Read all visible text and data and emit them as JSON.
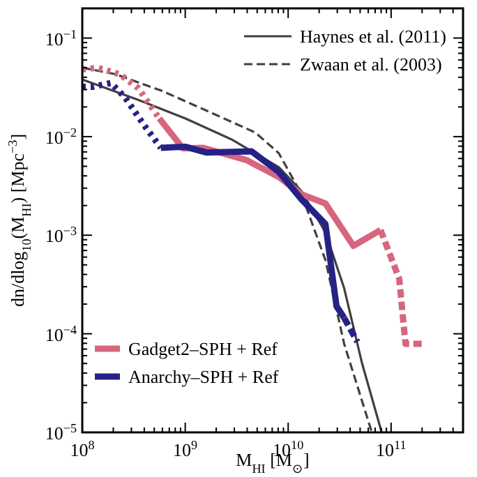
{
  "chart_data": {
    "type": "line",
    "xlabel": "M$_{HI}$ [M$_{⊙}$]",
    "ylabel": "dn/dlog$_{10}$(M$_{HI}$) [Mpc$^{−3}$]",
    "log": "xy",
    "legend": "top right",
    "grid": false,
    "marker": "none",
    "xlim": [
      100000000.0,
      500000000000.0
    ],
    "ylim": [
      1e-05,
      0.2
    ],
    "xticks": [
      {
        "value": 100000000.0,
        "label": "10$^{8}$"
      },
      {
        "value": 200000000.0,
        "label": null
      },
      {
        "value": 300000000.0,
        "label": null
      },
      {
        "value": 400000000.0,
        "label": null
      },
      {
        "value": 500000000.0,
        "label": null
      },
      {
        "value": 600000000.0,
        "label": null
      },
      {
        "value": 700000000.0,
        "label": null
      },
      {
        "value": 800000000.0,
        "label": null
      },
      {
        "value": 900000000.0,
        "label": null
      },
      {
        "value": 1000000000.0,
        "label": "10$^{9}$"
      },
      {
        "value": 2000000000.0,
        "label": null
      },
      {
        "value": 3000000000.0,
        "label": null
      },
      {
        "value": 4000000000.0,
        "label": null
      },
      {
        "value": 5000000000.0,
        "label": null
      },
      {
        "value": 6000000000.0,
        "label": null
      },
      {
        "value": 7000000000.0,
        "label": null
      },
      {
        "value": 8000000000.0,
        "label": null
      },
      {
        "value": 9000000000.0,
        "label": null
      },
      {
        "value": 10000000000.0,
        "label": "10$^{10}$"
      },
      {
        "value": 20000000000.0,
        "label": null
      },
      {
        "value": 30000000000.0,
        "label": null
      },
      {
        "value": 40000000000.0,
        "label": null
      },
      {
        "value": 50000000000.0,
        "label": null
      },
      {
        "value": 60000000000.0,
        "label": null
      },
      {
        "value": 70000000000.0,
        "label": null
      },
      {
        "value": 80000000000.0,
        "label": null
      },
      {
        "value": 90000000000.0,
        "label": null
      },
      {
        "value": 100000000000.0,
        "label": "10$^{11}$"
      },
      {
        "value": 200000000000.0,
        "label": null
      },
      {
        "value": 300000000000.0,
        "label": null
      },
      {
        "value": 400000000000.0,
        "label": null
      }
    ],
    "yticks": [
      {
        "value": 1e-05,
        "label": "10$^{−5}$"
      },
      {
        "value": 2e-05,
        "label": null
      },
      {
        "value": 3e-05,
        "label": null
      },
      {
        "value": 4e-05,
        "label": null
      },
      {
        "value": 5e-05,
        "label": null
      },
      {
        "value": 6e-05,
        "label": null
      },
      {
        "value": 7e-05,
        "label": null
      },
      {
        "value": 8e-05,
        "label": null
      },
      {
        "value": 9e-05,
        "label": null
      },
      {
        "value": 0.0001,
        "label": "10$^{−4}$"
      },
      {
        "value": 0.0002,
        "label": null
      },
      {
        "value": 0.0003,
        "label": null
      },
      {
        "value": 0.0004,
        "label": null
      },
      {
        "value": 0.0005,
        "label": null
      },
      {
        "value": 0.0006,
        "label": null
      },
      {
        "value": 0.0007,
        "label": null
      },
      {
        "value": 0.0008,
        "label": null
      },
      {
        "value": 0.0009,
        "label": null
      },
      {
        "value": 0.001,
        "label": "10$^{−3}$"
      },
      {
        "value": 0.002,
        "label": null
      },
      {
        "value": 0.003,
        "label": null
      },
      {
        "value": 0.004,
        "label": null
      },
      {
        "value": 0.005,
        "label": null
      },
      {
        "value": 0.006,
        "label": null
      },
      {
        "value": 0.007,
        "label": null
      },
      {
        "value": 0.008,
        "label": null
      },
      {
        "value": 0.009,
        "label": null
      },
      {
        "value": 0.01,
        "label": "10$^{−2}$"
      },
      {
        "value": 0.02,
        "label": null
      },
      {
        "value": 0.03,
        "label": null
      },
      {
        "value": 0.04,
        "label": null
      },
      {
        "value": 0.05,
        "label": null
      },
      {
        "value": 0.06,
        "label": null
      },
      {
        "value": 0.07,
        "label": null
      },
      {
        "value": 0.08,
        "label": null
      },
      {
        "value": 0.09,
        "label": null
      },
      {
        "value": 0.1,
        "label": "10$^{−1}$"
      },
      {
        "value": 0.2,
        "label": null
      }
    ],
    "series": [
      {
        "name": "Haynes et al. (2011)",
        "color": "#404040",
        "line_style": "solid",
        "x": [
          100000000.0,
          350000000.0,
          1000000000.0,
          2800000000.0,
          8100000000.0,
          13500000000.0,
          23000000000.0,
          35000000000.0,
          52000000000.0,
          81000000000.0
        ],
        "values": [
          0.038,
          0.0236,
          0.0153,
          0.0094,
          0.0049,
          0.0028,
          0.00107,
          0.00029,
          5.1e-05,
          1e-05
        ]
      },
      {
        "name": "Zwaan et al. (2003)",
        "color": "#404040",
        "line_style": "dashed",
        "x": [
          100000000.0,
          210000000.0,
          600000000.0,
          1700000000.0,
          4800000000.0,
          8100000000.0,
          13500000000.0,
          23000000000.0,
          35000000000.0,
          65000000000.0
        ],
        "values": [
          0.05,
          0.043,
          0.029,
          0.0179,
          0.011,
          0.0068,
          0.0026,
          0.00056,
          7.9e-05,
          1e-05
        ]
      },
      {
        "color": "#d6667e",
        "line_style": "dotted",
        "x": [
          100000000.0,
          140000000.0,
          230000000.0,
          350000000.0,
          560000000.0
        ],
        "values": [
          0.048,
          0.05,
          0.043,
          0.031,
          0.0153
        ]
      },
      {
        "color": "#262186",
        "line_style": "dotted",
        "x": [
          100000000.0,
          126000000.0,
          190000000.0,
          260000000.0,
          400000000.0,
          580000000.0
        ],
        "values": [
          0.032,
          0.032,
          0.035,
          0.025,
          0.013,
          0.0077
        ]
      },
      {
        "name": "Gadget2–SPH + Ref",
        "color": "#d6667e",
        "line_style": "solid",
        "x": [
          560000000.0,
          950000000.0,
          1500000000.0,
          3900000000.0,
          8100000000.0,
          13500000000.0,
          23000000000.0,
          43000000000.0,
          79000000000.0
        ],
        "values": [
          0.0153,
          0.0076,
          0.0077,
          0.0058,
          0.0039,
          0.0026,
          0.0021,
          0.00078,
          0.00113
        ]
      },
      {
        "name": "Anarchy–SPH + Ref",
        "color": "#262186",
        "line_style": "solid",
        "x": [
          580000000.0,
          1000000000.0,
          1600000000.0,
          4400000000.0,
          8100000000.0,
          13500000000.0,
          23000000000.0,
          29500000000.0,
          35000000000.0
        ],
        "values": [
          0.0077,
          0.0079,
          0.0069,
          0.0071,
          0.0044,
          0.0023,
          0.0013,
          0.00019,
          0.000145
        ]
      },
      {
        "color": "#d6667e",
        "line_style": "dashed",
        "x": [
          79000000000.0,
          120000000000.0,
          138000000000.0,
          200000000000.0
        ],
        "values": [
          0.00113,
          0.00036,
          7.9e-05,
          7.9e-05
        ]
      },
      {
        "color": "#262186",
        "line_style": "dashed",
        "x": [
          35000000000.0,
          47000000000.0
        ],
        "values": [
          0.000145,
          8.3e-05
        ]
      }
    ]
  }
}
